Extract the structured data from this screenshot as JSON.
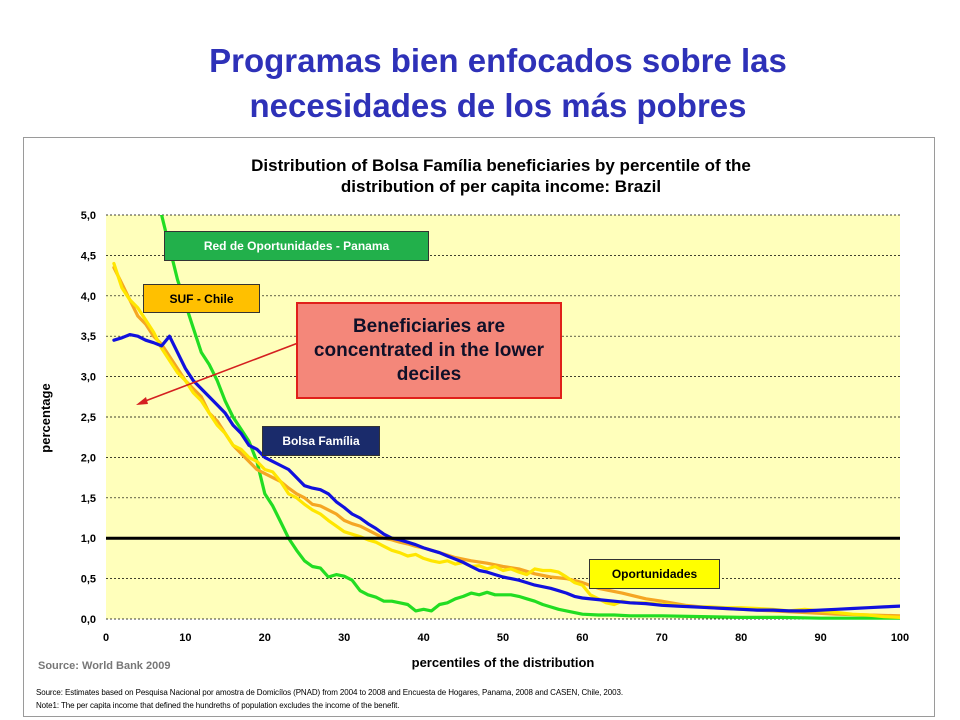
{
  "slide": {
    "title_line1": "Programas bien enfocados sobre las",
    "title_line2": "necesidades de los más pobres"
  },
  "chart_data": {
    "type": "line",
    "title_line1": "Distribution of Bolsa Família beneficiaries by percentile of the",
    "title_line2": "distribution of per capita income: Brazil",
    "xlabel": "percentiles of the distribution",
    "ylabel": "percentage",
    "xlim": [
      0,
      100
    ],
    "ylim": [
      0,
      5
    ],
    "x_ticks": [
      "0",
      "10",
      "20",
      "30",
      "40",
      "50",
      "60",
      "70",
      "80",
      "90",
      "100"
    ],
    "y_ticks": [
      "0,0",
      "0,5",
      "1,0",
      "1,5",
      "2,0",
      "2,5",
      "3,0",
      "3,5",
      "4,0",
      "4,5",
      "5,0"
    ],
    "grid": "horizontal",
    "plot_background": "#FFFFBB",
    "reference_line": {
      "y": 1.0,
      "color": "#000000"
    },
    "series": [
      {
        "name": "Red de Oportunidades - Panama",
        "color": "#22DD22",
        "points": [
          [
            7,
            5.0
          ],
          [
            8,
            4.6
          ],
          [
            9,
            4.2
          ],
          [
            10,
            3.9
          ],
          [
            11,
            3.6
          ],
          [
            12,
            3.3
          ],
          [
            13,
            3.15
          ],
          [
            14,
            2.95
          ],
          [
            15,
            2.7
          ],
          [
            16,
            2.5
          ],
          [
            17,
            2.35
          ],
          [
            18,
            2.2
          ],
          [
            19,
            1.95
          ],
          [
            20,
            1.55
          ],
          [
            21,
            1.4
          ],
          [
            22,
            1.2
          ],
          [
            23,
            1.0
          ],
          [
            24,
            0.85
          ],
          [
            25,
            0.72
          ],
          [
            26,
            0.65
          ],
          [
            27,
            0.63
          ],
          [
            28,
            0.52
          ],
          [
            29,
            0.55
          ],
          [
            30,
            0.53
          ],
          [
            31,
            0.48
          ],
          [
            32,
            0.35
          ],
          [
            33,
            0.3
          ],
          [
            34,
            0.27
          ],
          [
            35,
            0.22
          ],
          [
            36,
            0.22
          ],
          [
            37,
            0.2
          ],
          [
            38,
            0.18
          ],
          [
            39,
            0.1
          ],
          [
            40,
            0.12
          ],
          [
            41,
            0.1
          ],
          [
            42,
            0.18
          ],
          [
            43,
            0.2
          ],
          [
            44,
            0.25
          ],
          [
            45,
            0.28
          ],
          [
            46,
            0.32
          ],
          [
            47,
            0.3
          ],
          [
            48,
            0.33
          ],
          [
            49,
            0.3
          ],
          [
            50,
            0.3
          ],
          [
            51,
            0.3
          ],
          [
            52,
            0.28
          ],
          [
            53,
            0.25
          ],
          [
            54,
            0.22
          ],
          [
            55,
            0.18
          ],
          [
            56,
            0.15
          ],
          [
            57,
            0.12
          ],
          [
            58,
            0.1
          ],
          [
            60,
            0.06
          ],
          [
            62,
            0.05
          ],
          [
            64,
            0.05
          ],
          [
            66,
            0.04
          ],
          [
            70,
            0.04
          ],
          [
            75,
            0.03
          ],
          [
            80,
            0.02
          ],
          [
            85,
            0.02
          ],
          [
            90,
            0.01
          ],
          [
            95,
            0.01
          ],
          [
            100,
            0.01
          ]
        ]
      },
      {
        "name": "SUF - Chile",
        "color": "#F5A623",
        "points": [
          [
            1,
            4.35
          ],
          [
            2,
            4.15
          ],
          [
            3,
            3.95
          ],
          [
            4,
            3.75
          ],
          [
            5,
            3.65
          ],
          [
            6,
            3.5
          ],
          [
            7,
            3.4
          ],
          [
            8,
            3.25
          ],
          [
            9,
            3.1
          ],
          [
            10,
            2.95
          ],
          [
            11,
            2.85
          ],
          [
            12,
            2.75
          ],
          [
            13,
            2.55
          ],
          [
            14,
            2.45
          ],
          [
            15,
            2.3
          ],
          [
            16,
            2.15
          ],
          [
            17,
            2.05
          ],
          [
            18,
            1.95
          ],
          [
            19,
            1.85
          ],
          [
            20,
            1.8
          ],
          [
            21,
            1.75
          ],
          [
            22,
            1.7
          ],
          [
            23,
            1.62
          ],
          [
            24,
            1.55
          ],
          [
            25,
            1.5
          ],
          [
            26,
            1.42
          ],
          [
            27,
            1.4
          ],
          [
            28,
            1.35
          ],
          [
            29,
            1.3
          ],
          [
            30,
            1.22
          ],
          [
            31,
            1.18
          ],
          [
            32,
            1.15
          ],
          [
            33,
            1.1
          ],
          [
            34,
            1.05
          ],
          [
            35,
            1.0
          ],
          [
            36,
            0.98
          ],
          [
            37,
            0.95
          ],
          [
            38,
            0.93
          ],
          [
            39,
            0.9
          ],
          [
            40,
            0.88
          ],
          [
            42,
            0.82
          ],
          [
            44,
            0.76
          ],
          [
            46,
            0.72
          ],
          [
            48,
            0.69
          ],
          [
            50,
            0.65
          ],
          [
            52,
            0.62
          ],
          [
            54,
            0.56
          ],
          [
            56,
            0.52
          ],
          [
            58,
            0.5
          ],
          [
            60,
            0.45
          ],
          [
            62,
            0.38
          ],
          [
            65,
            0.32
          ],
          [
            68,
            0.25
          ],
          [
            70,
            0.22
          ],
          [
            73,
            0.17
          ],
          [
            76,
            0.14
          ],
          [
            80,
            0.12
          ],
          [
            84,
            0.1
          ],
          [
            88,
            0.08
          ],
          [
            92,
            0.06
          ],
          [
            96,
            0.05
          ],
          [
            100,
            0.04
          ]
        ]
      },
      {
        "name": "Oportunidades",
        "color": "#FFE600",
        "points": [
          [
            1,
            4.4
          ],
          [
            2,
            4.1
          ],
          [
            3,
            3.95
          ],
          [
            4,
            3.85
          ],
          [
            5,
            3.7
          ],
          [
            6,
            3.55
          ],
          [
            7,
            3.35
          ],
          [
            8,
            3.2
          ],
          [
            9,
            3.05
          ],
          [
            10,
            2.95
          ],
          [
            11,
            2.8
          ],
          [
            12,
            2.7
          ],
          [
            13,
            2.55
          ],
          [
            14,
            2.4
          ],
          [
            15,
            2.3
          ],
          [
            16,
            2.15
          ],
          [
            17,
            2.1
          ],
          [
            18,
            2.0
          ],
          [
            19,
            1.95
          ],
          [
            20,
            1.85
          ],
          [
            21,
            1.82
          ],
          [
            22,
            1.7
          ],
          [
            23,
            1.55
          ],
          [
            24,
            1.5
          ],
          [
            25,
            1.42
          ],
          [
            26,
            1.35
          ],
          [
            27,
            1.3
          ],
          [
            28,
            1.22
          ],
          [
            29,
            1.15
          ],
          [
            30,
            1.08
          ],
          [
            31,
            1.05
          ],
          [
            32,
            1.02
          ],
          [
            33,
            0.98
          ],
          [
            34,
            0.95
          ],
          [
            35,
            0.9
          ],
          [
            36,
            0.85
          ],
          [
            37,
            0.82
          ],
          [
            38,
            0.78
          ],
          [
            39,
            0.8
          ],
          [
            40,
            0.75
          ],
          [
            41,
            0.72
          ],
          [
            42,
            0.7
          ],
          [
            43,
            0.72
          ],
          [
            44,
            0.68
          ],
          [
            45,
            0.7
          ],
          [
            46,
            0.65
          ],
          [
            47,
            0.66
          ],
          [
            48,
            0.62
          ],
          [
            49,
            0.65
          ],
          [
            50,
            0.6
          ],
          [
            51,
            0.62
          ],
          [
            52,
            0.58
          ],
          [
            53,
            0.55
          ],
          [
            54,
            0.62
          ],
          [
            55,
            0.6
          ],
          [
            56,
            0.6
          ],
          [
            57,
            0.58
          ],
          [
            58,
            0.52
          ],
          [
            59,
            0.45
          ],
          [
            60,
            0.42
          ],
          [
            61,
            0.3
          ],
          [
            62,
            0.25
          ],
          [
            63,
            0.2
          ],
          [
            64,
            0.18
          ],
          [
            65,
            0.22
          ],
          [
            66,
            0.2
          ],
          [
            68,
            0.2
          ],
          [
            70,
            0.18
          ],
          [
            72,
            0.17
          ],
          [
            74,
            0.15
          ],
          [
            76,
            0.15
          ],
          [
            78,
            0.14
          ],
          [
            80,
            0.14
          ],
          [
            82,
            0.13
          ],
          [
            84,
            0.12
          ],
          [
            86,
            0.1
          ],
          [
            88,
            0.12
          ],
          [
            90,
            0.1
          ],
          [
            92,
            0.08
          ],
          [
            94,
            0.06
          ],
          [
            96,
            0.05
          ],
          [
            98,
            0.03
          ],
          [
            100,
            0.02
          ]
        ]
      },
      {
        "name": "Bolsa Família",
        "color": "#1111DD",
        "points": [
          [
            1,
            3.45
          ],
          [
            2,
            3.48
          ],
          [
            3,
            3.52
          ],
          [
            4,
            3.5
          ],
          [
            5,
            3.45
          ],
          [
            6,
            3.42
          ],
          [
            7,
            3.38
          ],
          [
            8,
            3.5
          ],
          [
            9,
            3.3
          ],
          [
            10,
            3.1
          ],
          [
            11,
            2.95
          ],
          [
            12,
            2.85
          ],
          [
            13,
            2.75
          ],
          [
            14,
            2.65
          ],
          [
            15,
            2.55
          ],
          [
            16,
            2.4
          ],
          [
            17,
            2.3
          ],
          [
            18,
            2.15
          ],
          [
            19,
            2.1
          ],
          [
            20,
            2.0
          ],
          [
            21,
            1.95
          ],
          [
            22,
            1.9
          ],
          [
            23,
            1.85
          ],
          [
            24,
            1.75
          ],
          [
            25,
            1.65
          ],
          [
            26,
            1.62
          ],
          [
            27,
            1.6
          ],
          [
            28,
            1.55
          ],
          [
            29,
            1.45
          ],
          [
            30,
            1.38
          ],
          [
            31,
            1.3
          ],
          [
            32,
            1.25
          ],
          [
            33,
            1.18
          ],
          [
            34,
            1.12
          ],
          [
            35,
            1.05
          ],
          [
            36,
            1.0
          ],
          [
            37,
            0.98
          ],
          [
            38,
            0.95
          ],
          [
            39,
            0.92
          ],
          [
            40,
            0.88
          ],
          [
            41,
            0.85
          ],
          [
            42,
            0.82
          ],
          [
            43,
            0.78
          ],
          [
            44,
            0.74
          ],
          [
            45,
            0.7
          ],
          [
            46,
            0.65
          ],
          [
            47,
            0.6
          ],
          [
            48,
            0.58
          ],
          [
            49,
            0.55
          ],
          [
            50,
            0.52
          ],
          [
            51,
            0.5
          ],
          [
            52,
            0.48
          ],
          [
            53,
            0.45
          ],
          [
            54,
            0.42
          ],
          [
            55,
            0.4
          ],
          [
            56,
            0.38
          ],
          [
            57,
            0.35
          ],
          [
            58,
            0.32
          ],
          [
            59,
            0.28
          ],
          [
            60,
            0.26
          ],
          [
            62,
            0.24
          ],
          [
            64,
            0.22
          ],
          [
            66,
            0.2
          ],
          [
            68,
            0.19
          ],
          [
            70,
            0.17
          ],
          [
            72,
            0.16
          ],
          [
            74,
            0.15
          ],
          [
            76,
            0.14
          ],
          [
            78,
            0.13
          ],
          [
            80,
            0.12
          ],
          [
            82,
            0.11
          ],
          [
            84,
            0.11
          ],
          [
            86,
            0.1
          ],
          [
            88,
            0.1
          ],
          [
            90,
            0.11
          ],
          [
            92,
            0.12
          ],
          [
            94,
            0.13
          ],
          [
            96,
            0.14
          ],
          [
            98,
            0.15
          ],
          [
            100,
            0.16
          ]
        ]
      }
    ],
    "labels": {
      "panama": "Red de Oportunidades - Panama",
      "chile": "SUF - Chile",
      "bolsa": "Bolsa Família",
      "oportunidades": "Oportunidades"
    },
    "callout": "Beneficiaries are concentrated in the lower deciles",
    "source_inline": "Source: World Bank 2009",
    "note_source": "Source:  Estimates based on Pesquisa Nacional por amostra de Domicílos (PNAD) from 2004 to 2008 and Encuesta de Hogares, Panama, 2008 and CASEN, Chile, 2003.",
    "note_1": "Note1: The per capita income that defined the hundreths of population excludes the income of the benefit."
  }
}
